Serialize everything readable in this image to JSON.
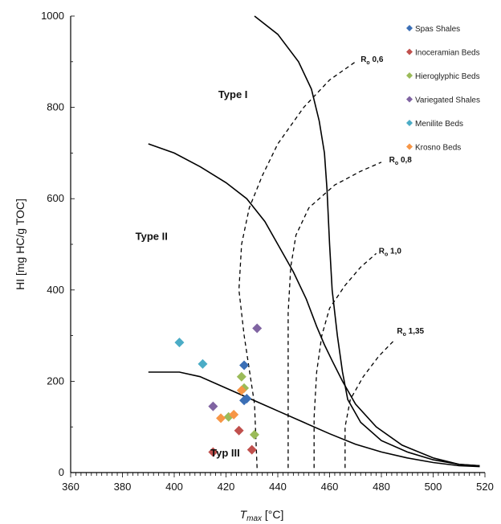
{
  "chart_data": {
    "type": "scatter",
    "xlabel": {
      "main": "T",
      "sub": "max",
      "unit": " [°C]"
    },
    "ylabel": "HI [mg HC/g TOC]",
    "xlim": [
      360,
      520
    ],
    "ylim": [
      0,
      1000
    ],
    "xticks": [
      360,
      380,
      400,
      420,
      440,
      460,
      480,
      500,
      520
    ],
    "yticks": [
      0,
      200,
      400,
      600,
      800,
      1000
    ],
    "grid": false,
    "legend_position": "top-right",
    "region_labels": [
      {
        "text": "Type I",
        "x": 417,
        "y": 820
      },
      {
        "text": "Type II",
        "x": 385,
        "y": 510
      },
      {
        "text": "Typ III",
        "x": 414,
        "y": 35
      }
    ],
    "series": [
      {
        "name": "Spas Shales",
        "color": "#3b6fb6",
        "points": [
          [
            427,
            235
          ],
          [
            428,
            162
          ],
          [
            427,
            158
          ]
        ]
      },
      {
        "name": "Inoceramian Beds",
        "color": "#c0504d",
        "points": [
          [
            415,
            45
          ],
          [
            425,
            92
          ],
          [
            430,
            50
          ]
        ]
      },
      {
        "name": "Hieroglyphic Beds",
        "color": "#9bbb59",
        "points": [
          [
            426,
            210
          ],
          [
            427,
            185
          ],
          [
            431,
            83
          ],
          [
            421,
            122
          ]
        ]
      },
      {
        "name": "Variegated Shales",
        "color": "#8064a2",
        "points": [
          [
            432,
            316
          ],
          [
            415,
            145
          ]
        ]
      },
      {
        "name": "Menilite Beds",
        "color": "#4bacc6",
        "points": [
          [
            402,
            285
          ],
          [
            411,
            238
          ]
        ]
      },
      {
        "name": "Krosno Beds",
        "color": "#f79646",
        "points": [
          [
            426,
            180
          ],
          [
            423,
            127
          ],
          [
            418,
            119
          ]
        ]
      }
    ],
    "boundary_curves": [
      {
        "name": "type-i-ii-boundary",
        "points": [
          [
            431,
            1000
          ],
          [
            440,
            960
          ],
          [
            448,
            900
          ],
          [
            453,
            840
          ],
          [
            456,
            770
          ],
          [
            458,
            700
          ],
          [
            459,
            620
          ],
          [
            460,
            500
          ],
          [
            461,
            400
          ],
          [
            463,
            300
          ],
          [
            465,
            220
          ],
          [
            467,
            160
          ],
          [
            472,
            110
          ],
          [
            480,
            70
          ],
          [
            490,
            45
          ],
          [
            500,
            28
          ],
          [
            510,
            18
          ],
          [
            518,
            15
          ]
        ]
      },
      {
        "name": "type-ii-iii-boundary-upper",
        "points": [
          [
            390,
            720
          ],
          [
            400,
            700
          ],
          [
            410,
            670
          ],
          [
            420,
            635
          ],
          [
            428,
            600
          ],
          [
            435,
            550
          ],
          [
            440,
            500
          ],
          [
            446,
            440
          ],
          [
            451,
            380
          ],
          [
            455,
            320
          ],
          [
            458,
            280
          ],
          [
            461,
            245
          ],
          [
            465,
            200
          ],
          [
            470,
            150
          ],
          [
            478,
            100
          ],
          [
            488,
            60
          ],
          [
            500,
            32
          ],
          [
            510,
            18
          ],
          [
            518,
            15
          ]
        ]
      },
      {
        "name": "type-ii-iii-boundary-lower",
        "points": [
          [
            390,
            220
          ],
          [
            402,
            220
          ],
          [
            410,
            210
          ],
          [
            420,
            185
          ],
          [
            430,
            160
          ],
          [
            440,
            135
          ],
          [
            450,
            110
          ],
          [
            460,
            85
          ],
          [
            470,
            62
          ],
          [
            480,
            45
          ],
          [
            490,
            32
          ],
          [
            500,
            22
          ],
          [
            510,
            15
          ],
          [
            518,
            13
          ]
        ]
      }
    ],
    "ro_isolines": [
      {
        "label_main": "R",
        "label_sub": "o",
        "label_value": " 0,6",
        "label_anchor": [
          472,
          900
        ],
        "points": [
          [
            432,
            10
          ],
          [
            431,
            150
          ],
          [
            427,
            300
          ],
          [
            425,
            400
          ],
          [
            426,
            500
          ],
          [
            429,
            580
          ],
          [
            434,
            650
          ],
          [
            440,
            720
          ],
          [
            450,
            800
          ],
          [
            460,
            860
          ],
          [
            470,
            900
          ]
        ]
      },
      {
        "label_main": "R",
        "label_sub": "o",
        "label_value": " 0,8",
        "label_anchor": [
          483,
          680
        ],
        "points": [
          [
            444,
            10
          ],
          [
            444,
            150
          ],
          [
            444,
            350
          ],
          [
            445,
            450
          ],
          [
            447,
            520
          ],
          [
            452,
            580
          ],
          [
            462,
            630
          ],
          [
            472,
            660
          ],
          [
            480,
            680
          ]
        ]
      },
      {
        "label_main": "R",
        "label_sub": "o",
        "label_value": " 1,0",
        "label_anchor": [
          479,
          480
        ],
        "points": [
          [
            454,
            10
          ],
          [
            454,
            120
          ],
          [
            455,
            220
          ],
          [
            457,
            300
          ],
          [
            460,
            360
          ],
          [
            466,
            410
          ],
          [
            472,
            450
          ],
          [
            478,
            480
          ]
        ]
      },
      {
        "label_main": "R",
        "label_sub": "o",
        "label_value": " 1,35",
        "label_anchor": [
          486,
          305
        ],
        "points": [
          [
            466,
            10
          ],
          [
            466,
            100
          ],
          [
            468,
            160
          ],
          [
            473,
            210
          ],
          [
            479,
            255
          ],
          [
            485,
            290
          ]
        ]
      }
    ]
  }
}
